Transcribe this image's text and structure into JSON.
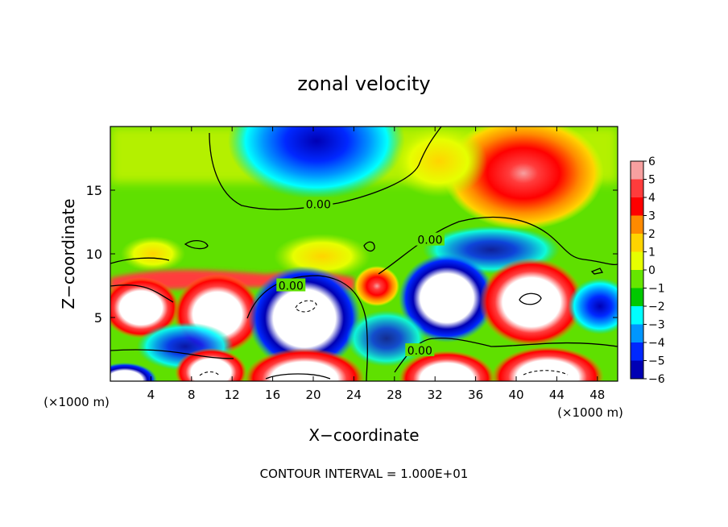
{
  "chart_data": {
    "type": "heatmap",
    "title": "zonal velocity",
    "xlabel": "X−coordinate",
    "ylabel": "Z−coordinate",
    "x_unit_left": "(×1000 m)",
    "x_unit_right": "(×1000 m)",
    "footer": "CONTOUR INTERVAL = 1.000E+01",
    "xlim": [
      0,
      50
    ],
    "ylim": [
      0,
      20
    ],
    "x_ticks": [
      4,
      8,
      12,
      16,
      20,
      24,
      28,
      32,
      36,
      40,
      44,
      48
    ],
    "y_ticks": [
      5,
      10,
      15
    ],
    "x_tick_labels": [
      "4",
      "8",
      "12",
      "16",
      "20",
      "24",
      "28",
      "32",
      "36",
      "40",
      "44",
      "48"
    ],
    "y_tick_labels": [
      "5",
      "10",
      "15"
    ],
    "colorbar": {
      "levels": [
        6,
        5,
        4,
        3,
        2,
        1,
        0,
        -1,
        -2,
        -3,
        -4,
        -5,
        -6
      ],
      "labels": [
        "6",
        "5",
        "4",
        "3",
        "2",
        "1",
        "0",
        "−1",
        "−2",
        "−3",
        "−4",
        "−5",
        "−6"
      ],
      "colors": [
        "#f7a0a0",
        "#ff3c3c",
        "#ff0000",
        "#ff8a00",
        "#ffd400",
        "#e6ff00",
        "#66e600",
        "#00c800",
        "#00ffff",
        "#0096ff",
        "#0028ff",
        "#0000b4",
        "#8c00c8"
      ]
    },
    "contour_labels": [
      {
        "text": "0.00",
        "x": 20.5,
        "z": 13.9
      },
      {
        "text": "0.00",
        "x": 31.5,
        "z": 11.1
      },
      {
        "text": "0.00",
        "x": 17.8,
        "z": 7.5
      },
      {
        "text": "0.00",
        "x": 30.5,
        "z": 2.4
      }
    ],
    "features": [
      {
        "kind": "min",
        "x": 20,
        "z": 19.5,
        "r": 5,
        "value": -5
      },
      {
        "kind": "max",
        "x": 41,
        "z": 16.2,
        "r": 4,
        "value": 5
      }
    ]
  }
}
